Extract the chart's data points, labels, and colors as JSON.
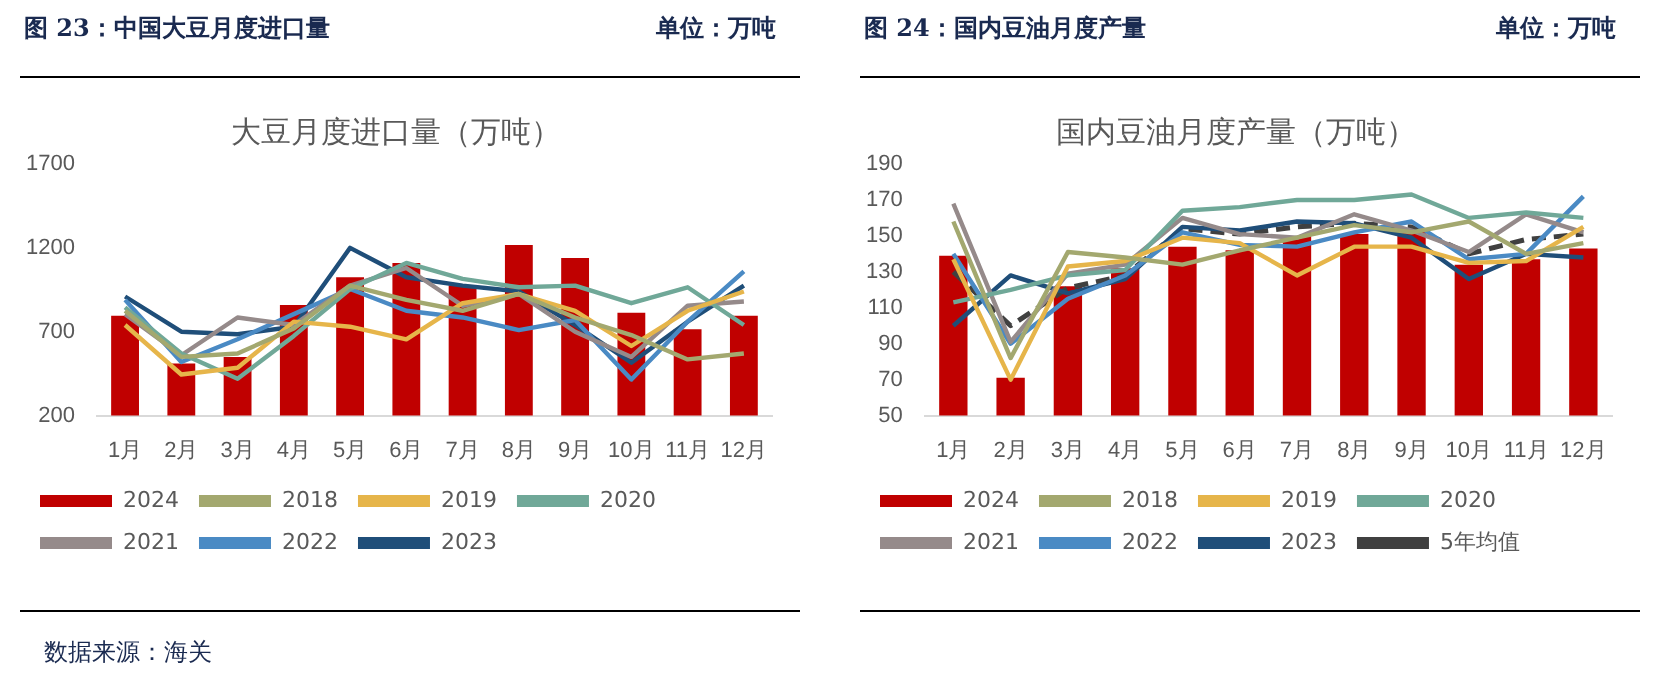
{
  "chart_data": [
    {
      "type": "line",
      "title": "图 23：中国大豆月度进口量",
      "subtitle": "大豆月度进口量（万吨）",
      "annotations": [
        "单位：万吨",
        "数据来源：海关"
      ],
      "categories": [
        "1月",
        "2月",
        "3月",
        "4月",
        "5月",
        "6月",
        "7月",
        "8月",
        "9月",
        "10月",
        "11月",
        "12月"
      ],
      "ylim": [
        200,
        1700
      ],
      "yticks": [
        200,
        700,
        1200,
        1700
      ],
      "legend": "bottom",
      "marker": "none",
      "series": [
        {
          "name": "2024",
          "type": "bar",
          "color": "#c00000",
          "values": [
            796,
            510,
            550,
            860,
            1025,
            1110,
            975,
            1217,
            1140,
            813,
            715,
            796
          ]
        },
        {
          "name": "2018",
          "color": "#a3a86f",
          "values": [
            825,
            550,
            570,
            720,
            975,
            890,
            825,
            925,
            785,
            680,
            535,
            570
          ]
        },
        {
          "name": "2019",
          "color": "#e6b54a",
          "values": [
            740,
            445,
            485,
            760,
            730,
            655,
            870,
            925,
            825,
            615,
            825,
            940
          ]
        },
        {
          "name": "2020",
          "color": "#70a898",
          "values": [
            845,
            570,
            420,
            675,
            955,
            1110,
            1015,
            965,
            975,
            870,
            965,
            740
          ]
        },
        {
          "name": "2021",
          "color": "#958a8a",
          "values": [
            805,
            560,
            785,
            740,
            975,
            1080,
            855,
            925,
            700,
            550,
            855,
            880
          ]
        },
        {
          "name": "2022",
          "color": "#4a8ac4",
          "values": [
            890,
            520,
            655,
            805,
            955,
            825,
            785,
            710,
            770,
            415,
            760,
            1060
          ]
        },
        {
          "name": "2023",
          "color": "#1f4e79",
          "values": [
            910,
            700,
            685,
            730,
            1200,
            1025,
            975,
            940,
            740,
            515,
            760,
            975
          ]
        }
      ]
    },
    {
      "type": "line",
      "title": "图 24：国内豆油月度产量",
      "subtitle": "国内豆油月度产量（万吨）",
      "annotations": [
        "单位：万吨"
      ],
      "categories": [
        "1月",
        "2月",
        "3月",
        "4月",
        "5月",
        "6月",
        "7月",
        "8月",
        "9月",
        "10月",
        "11月",
        "12月"
      ],
      "ylim": [
        50,
        190
      ],
      "yticks": [
        50,
        70,
        90,
        110,
        130,
        150,
        170,
        190
      ],
      "legend": "bottom",
      "marker": "none",
      "series": [
        {
          "name": "2024",
          "type": "bar",
          "color": "#c00000",
          "values": [
            139,
            71,
            122,
            132,
            144,
            142,
            150,
            151,
            154,
            134,
            137,
            143
          ]
        },
        {
          "name": "2018",
          "color": "#a3a86f",
          "values": [
            158,
            82,
            141,
            138,
            134,
            142,
            149,
            156,
            152,
            158,
            140,
            146
          ]
        },
        {
          "name": "2019",
          "color": "#e6b54a",
          "values": [
            137,
            70,
            133,
            136,
            149,
            146,
            128,
            144,
            144,
            135,
            136,
            155
          ]
        },
        {
          "name": "2020",
          "color": "#70a898",
          "values": [
            113,
            120,
            128,
            131,
            164,
            166,
            170,
            170,
            173,
            160,
            163,
            160
          ]
        },
        {
          "name": "2021",
          "color": "#958a8a",
          "values": [
            168,
            91,
            129,
            134,
            160,
            151,
            149,
            162,
            153,
            141,
            162,
            152
          ]
        },
        {
          "name": "2022",
          "color": "#4a8ac4",
          "values": [
            140,
            90,
            115,
            128,
            152,
            145,
            144,
            152,
            158,
            137,
            140,
            172
          ]
        },
        {
          "name": "2023",
          "color": "#1f4e79",
          "values": [
            100,
            128,
            118,
            126,
            155,
            153,
            158,
            157,
            149,
            126,
            140,
            138
          ]
        },
        {
          "name": "5年均值",
          "color": "#404040",
          "line_style": "dashed",
          "values": [
            130,
            100,
            121,
            128,
            154,
            151,
            155,
            157,
            155,
            140,
            148,
            151
          ]
        }
      ]
    }
  ]
}
